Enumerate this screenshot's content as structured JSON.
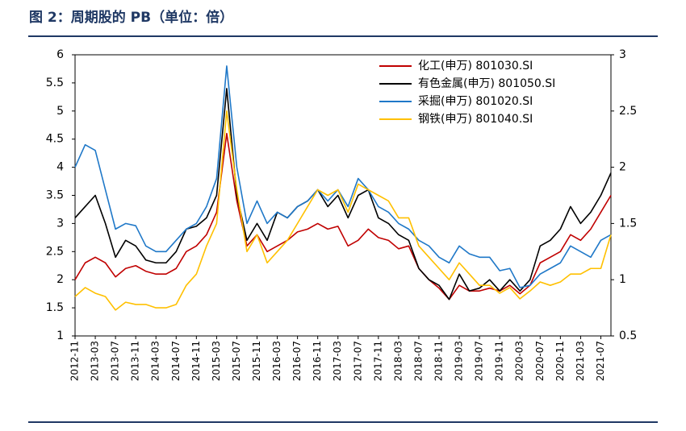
{
  "chart_data": {
    "type": "line",
    "title": "图 2：周期股的 PB（单位：倍）",
    "categories": [
      "2012-11",
      null,
      "2013-03",
      null,
      "2013-07",
      null,
      "2013-11",
      null,
      "2014-03",
      null,
      "2014-07",
      null,
      "2014-11",
      null,
      "2015-03",
      null,
      "2015-07",
      null,
      "2015-11",
      null,
      "2016-03",
      null,
      "2016-07",
      null,
      "2016-11",
      null,
      "2017-03",
      null,
      "2017-07",
      null,
      "2017-11",
      null,
      "2018-03",
      null,
      "2018-07",
      null,
      "2018-11",
      null,
      "2019-03",
      null,
      "2019-07",
      null,
      "2019-11",
      null,
      "2020-03",
      null,
      "2020-07",
      null,
      "2020-11",
      null,
      "2021-03",
      null,
      "2021-07",
      null
    ],
    "series": [
      {
        "name": "化工(申万) 801030.SI",
        "color": "#c00000",
        "values": [
          2.0,
          2.3,
          2.4,
          2.3,
          2.05,
          2.2,
          2.25,
          2.15,
          2.1,
          2.1,
          2.2,
          2.5,
          2.6,
          2.8,
          3.2,
          4.6,
          3.4,
          2.6,
          2.8,
          2.5,
          2.6,
          2.7,
          2.85,
          2.9,
          3.0,
          2.9,
          2.95,
          2.6,
          2.7,
          2.9,
          2.75,
          2.7,
          2.55,
          2.6,
          2.2,
          2.0,
          1.85,
          1.65,
          1.9,
          1.8,
          1.8,
          1.85,
          1.8,
          1.9,
          1.75,
          1.9,
          2.3,
          2.4,
          2.5,
          2.8,
          2.7,
          2.9,
          3.2,
          3.5
        ]
      },
      {
        "name": "有色金属(申万) 801050.SI",
        "color": "#000000",
        "values": [
          3.1,
          3.3,
          3.5,
          3.0,
          2.4,
          2.7,
          2.6,
          2.35,
          2.3,
          2.3,
          2.5,
          2.9,
          2.95,
          3.1,
          3.5,
          5.4,
          3.5,
          2.7,
          3.0,
          2.7,
          3.2,
          3.1,
          3.3,
          3.4,
          3.6,
          3.3,
          3.5,
          3.1,
          3.5,
          3.6,
          3.1,
          3.0,
          2.8,
          2.7,
          2.2,
          2.0,
          1.9,
          1.65,
          2.1,
          1.8,
          1.85,
          2.0,
          1.8,
          2.0,
          1.8,
          2.0,
          2.6,
          2.7,
          2.9,
          3.3,
          3.0,
          3.2,
          3.5,
          3.9
        ]
      },
      {
        "name": "采掘(申万) 801020.SI",
        "color": "#1f78c8",
        "axis": "y2",
        "values": [
          2.0,
          2.2,
          2.15,
          1.8,
          1.45,
          1.5,
          1.48,
          1.3,
          1.25,
          1.25,
          1.35,
          1.45,
          1.5,
          1.65,
          1.9,
          2.9,
          2.0,
          1.5,
          1.7,
          1.5,
          1.6,
          1.55,
          1.65,
          1.7,
          1.8,
          1.7,
          1.8,
          1.65,
          1.9,
          1.8,
          1.65,
          1.6,
          1.5,
          1.45,
          1.35,
          1.3,
          1.2,
          1.15,
          1.3,
          1.23,
          1.2,
          1.2,
          1.08,
          1.1,
          0.93,
          0.95,
          1.05,
          1.1,
          1.15,
          1.3,
          1.25,
          1.2,
          1.35,
          1.4
        ]
      },
      {
        "name": "钢铁(申万) 801040.SI",
        "color": "#ffc000",
        "axis": "y2",
        "values": [
          0.85,
          0.93,
          0.88,
          0.85,
          0.73,
          0.8,
          0.78,
          0.78,
          0.75,
          0.75,
          0.78,
          0.95,
          1.05,
          1.3,
          1.5,
          2.5,
          1.8,
          1.25,
          1.4,
          1.15,
          1.25,
          1.35,
          1.5,
          1.65,
          1.8,
          1.75,
          1.8,
          1.6,
          1.85,
          1.8,
          1.75,
          1.7,
          1.55,
          1.55,
          1.3,
          1.2,
          1.1,
          1.0,
          1.15,
          1.05,
          0.95,
          0.95,
          0.88,
          0.93,
          0.83,
          0.9,
          0.98,
          0.95,
          0.98,
          1.05,
          1.05,
          1.1,
          1.1,
          1.4
        ]
      }
    ],
    "ylim": [
      1,
      6
    ],
    "yticks": [
      1,
      1.5,
      2,
      2.5,
      3,
      3.5,
      4,
      4.5,
      5,
      5.5,
      6
    ],
    "y2lim": [
      0.5,
      3
    ],
    "y2ticks": [
      0.5,
      1,
      1.5,
      2,
      2.5,
      3
    ],
    "grid": false,
    "legend": "upper right"
  }
}
